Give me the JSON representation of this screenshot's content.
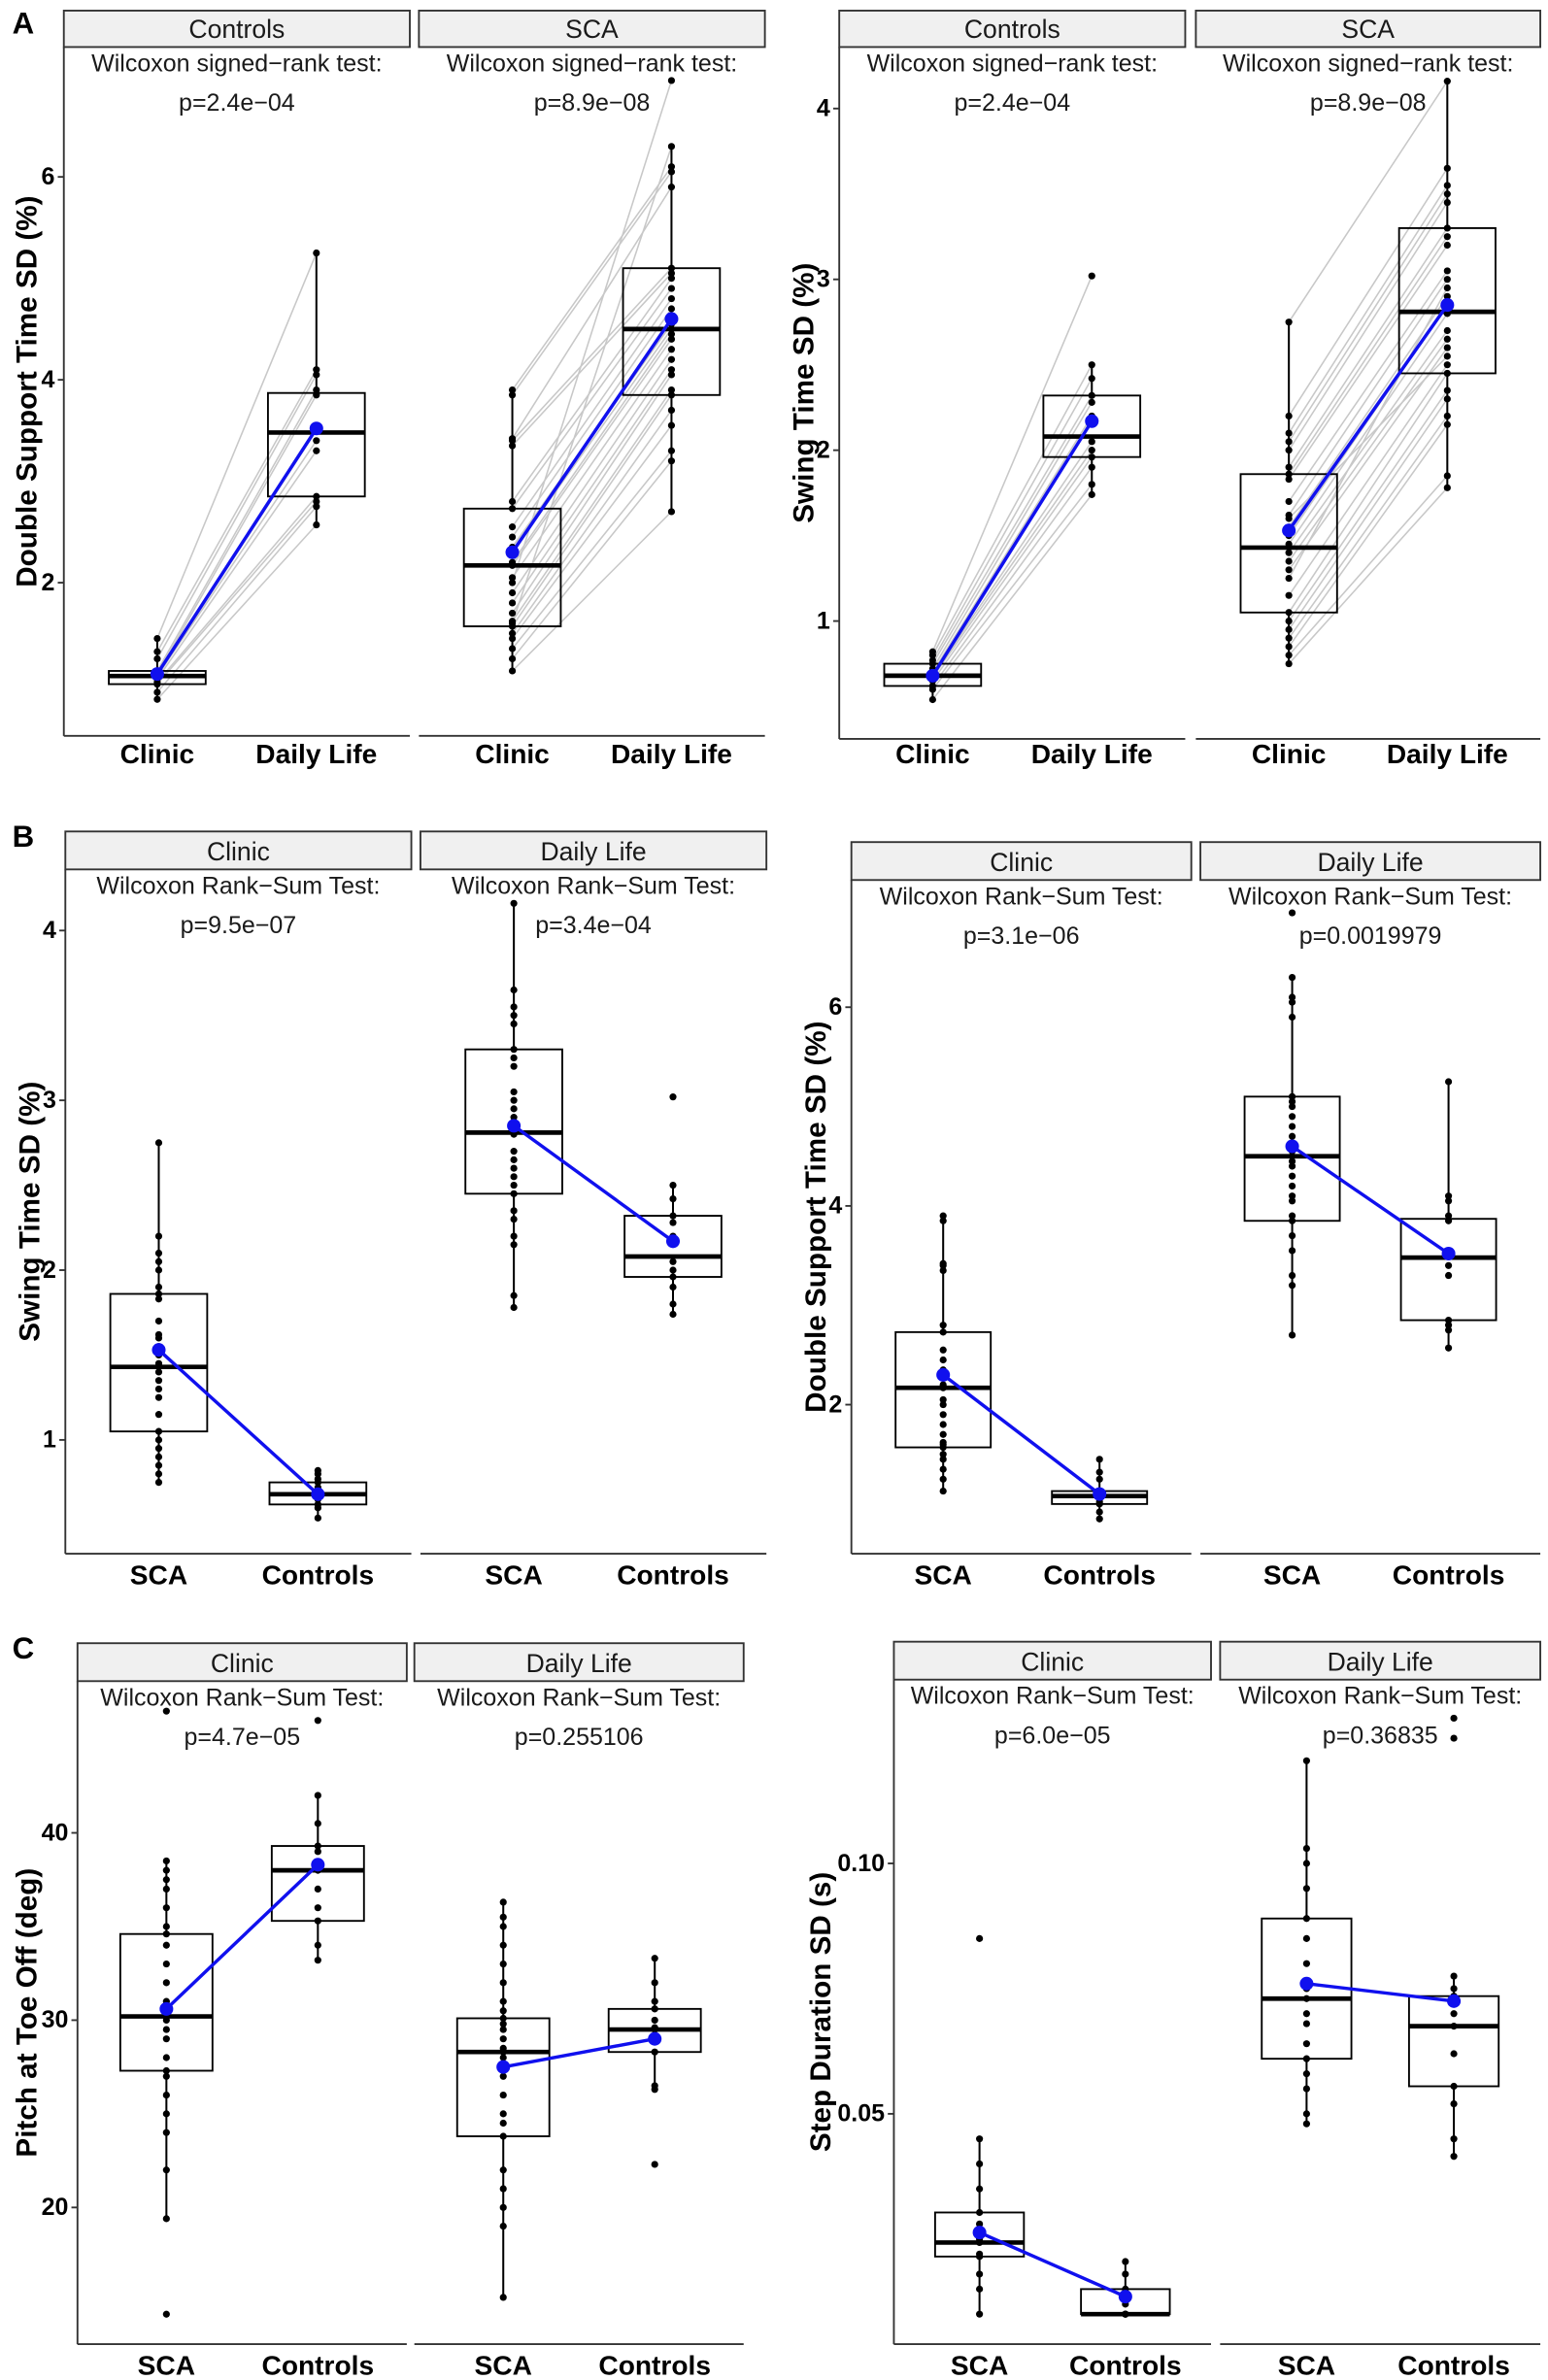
{
  "colors": {
    "mean": "#1010ee",
    "paired_line": "#c8c8c8",
    "strip_bg": "#f0f0f0",
    "points": "#000000"
  },
  "panel_letters": [
    "A",
    "B",
    "C"
  ],
  "chart_data": [
    {
      "type": "boxplot",
      "panel": "A",
      "ylabel": "Double Support Time SD (%)",
      "yticks": [
        2,
        4,
        6
      ],
      "ylim": [
        0.49,
        7.28
      ],
      "paired": true,
      "facets": [
        {
          "strip": "Controls",
          "test": "Wilcoxon signed−rank test:",
          "p": "p=2.4e−04",
          "categories": [
            "Clinic",
            "Daily Life"
          ],
          "groups": [
            {
              "box": [
                0.85,
                1.0,
                1.08,
                1.13,
                1.45
              ],
              "mean": 1.1,
              "points": [
                0.85,
                0.92,
                1.0,
                1.02,
                1.05,
                1.08,
                1.08,
                1.1,
                1.13,
                1.25,
                1.32,
                1.45
              ]
            },
            {
              "box": [
                2.57,
                2.85,
                3.48,
                3.87,
                5.25
              ],
              "mean": 3.52,
              "points": [
                2.57,
                2.75,
                2.8,
                2.85,
                3.3,
                3.4,
                3.5,
                3.85,
                3.9,
                4.05,
                4.1,
                5.25
              ]
            }
          ]
        },
        {
          "strip": "SCA",
          "test": "Wilcoxon signed−rank test:",
          "p": "p=8.9e−08",
          "categories": [
            "Clinic",
            "Daily Life"
          ],
          "groups": [
            {
              "box": [
                1.13,
                1.57,
                2.17,
                2.73,
                3.9
              ],
              "mean": 2.3,
              "points": [
                1.13,
                1.25,
                1.35,
                1.45,
                1.5,
                1.57,
                1.62,
                1.7,
                1.8,
                1.9,
                2.05,
                2.17,
                2.2,
                2.3,
                2.35,
                2.45,
                2.55,
                2.73,
                2.8,
                3.35,
                3.4,
                3.42,
                3.85,
                3.9,
                1.6,
                2.0
              ]
            },
            {
              "box": [
                2.7,
                3.85,
                4.5,
                5.1,
                6.3
              ],
              "mean": 4.6,
              "points": [
                2.7,
                3.2,
                3.3,
                3.55,
                3.7,
                3.85,
                3.9,
                4.05,
                4.1,
                4.2,
                4.3,
                4.4,
                4.45,
                4.5,
                4.55,
                4.7,
                4.8,
                4.9,
                5.0,
                5.05,
                5.1,
                5.9,
                6.05,
                6.1,
                6.3,
                6.95
              ]
            }
          ]
        }
      ]
    },
    {
      "type": "boxplot",
      "panel": "A",
      "ylabel": "Swing Time SD (%)",
      "yticks": [
        1,
        2,
        3,
        4
      ],
      "ylim": [
        0.31,
        4.36
      ],
      "paired": true,
      "facets": [
        {
          "strip": "Controls",
          "test": "Wilcoxon signed−rank test:",
          "p": "p=2.4e−04",
          "categories": [
            "Clinic",
            "Daily Life"
          ],
          "groups": [
            {
              "box": [
                0.54,
                0.62,
                0.68,
                0.75,
                0.82
              ],
              "mean": 0.68,
              "points": [
                0.54,
                0.6,
                0.62,
                0.65,
                0.67,
                0.68,
                0.7,
                0.72,
                0.75,
                0.77,
                0.8,
                0.82
              ]
            },
            {
              "box": [
                1.74,
                1.96,
                2.08,
                2.32,
                2.5
              ],
              "mean": 2.17,
              "points": [
                1.74,
                1.8,
                1.9,
                1.96,
                2.0,
                2.05,
                2.2,
                2.28,
                2.32,
                2.42,
                2.5,
                3.02
              ]
            }
          ]
        },
        {
          "strip": "SCA",
          "test": "Wilcoxon signed−rank test:",
          "p": "p=8.9e−08",
          "categories": [
            "Clinic",
            "Daily Life"
          ],
          "groups": [
            {
              "box": [
                0.75,
                1.05,
                1.43,
                1.86,
                2.75
              ],
              "mean": 1.53,
              "points": [
                0.75,
                0.8,
                0.85,
                0.9,
                0.95,
                1.0,
                1.05,
                1.15,
                1.3,
                1.35,
                1.4,
                1.45,
                1.5,
                1.55,
                1.62,
                1.7,
                1.83,
                1.86,
                1.9,
                2.0,
                2.05,
                2.1,
                2.2,
                2.75,
                1.25,
                1.6
              ]
            },
            {
              "box": [
                1.78,
                2.45,
                2.81,
                3.3,
                4.16
              ],
              "mean": 2.85,
              "points": [
                1.78,
                1.85,
                2.15,
                2.2,
                2.3,
                2.35,
                2.45,
                2.5,
                2.6,
                2.65,
                2.7,
                2.8,
                2.85,
                2.9,
                3.0,
                3.05,
                3.2,
                3.25,
                3.3,
                3.45,
                3.5,
                3.55,
                3.65,
                4.16,
                2.95,
                2.55
              ]
            }
          ]
        }
      ]
    },
    {
      "type": "boxplot",
      "panel": "B",
      "ylabel": "Swing Time SD (%)",
      "yticks": [
        1,
        2,
        3,
        4
      ],
      "ylim": [
        0.33,
        4.36
      ],
      "paired": false,
      "facets": [
        {
          "strip": "Clinic",
          "test": "Wilcoxon Rank−Sum Test:",
          "p": "p=9.5e−07",
          "categories": [
            "SCA",
            "Controls"
          ],
          "groups": [
            {
              "box": [
                0.75,
                1.05,
                1.43,
                1.86,
                2.75
              ],
              "mean": 1.53,
              "points": [
                0.75,
                0.8,
                0.85,
                0.9,
                0.95,
                1.0,
                1.05,
                1.15,
                1.3,
                1.35,
                1.4,
                1.45,
                1.5,
                1.55,
                1.62,
                1.7,
                1.83,
                1.86,
                1.9,
                2.0,
                2.05,
                2.1,
                2.2,
                2.75,
                1.25,
                1.6
              ]
            },
            {
              "box": [
                0.54,
                0.62,
                0.68,
                0.75,
                0.82
              ],
              "mean": 0.68,
              "points": [
                0.54,
                0.6,
                0.62,
                0.65,
                0.67,
                0.68,
                0.7,
                0.72,
                0.75,
                0.77,
                0.8,
                0.82
              ]
            }
          ]
        },
        {
          "strip": "Daily Life",
          "test": "Wilcoxon Rank−Sum Test:",
          "p": "p=3.4e−04",
          "categories": [
            "SCA",
            "Controls"
          ],
          "groups": [
            {
              "box": [
                1.78,
                2.45,
                2.81,
                3.3,
                4.16
              ],
              "mean": 2.85,
              "points": [
                1.78,
                1.85,
                2.15,
                2.2,
                2.3,
                2.35,
                2.45,
                2.5,
                2.6,
                2.65,
                2.7,
                2.8,
                2.85,
                2.9,
                3.0,
                3.05,
                3.2,
                3.25,
                3.3,
                3.45,
                3.5,
                3.55,
                3.65,
                4.16,
                2.95,
                2.55
              ]
            },
            {
              "box": [
                1.74,
                1.96,
                2.08,
                2.32,
                2.5
              ],
              "mean": 2.17,
              "points": [
                1.74,
                1.8,
                1.9,
                1.96,
                2.0,
                2.05,
                2.2,
                2.28,
                2.32,
                2.42,
                2.5,
                3.02
              ]
            }
          ]
        }
      ]
    },
    {
      "type": "boxplot",
      "panel": "B",
      "ylabel": "Double Support Time SD (%)",
      "yticks": [
        2,
        4,
        6
      ],
      "ylim": [
        0.5,
        7.28
      ],
      "paired": false,
      "facets": [
        {
          "strip": "Clinic",
          "test": "Wilcoxon Rank−Sum Test:",
          "p": "p=3.1e−06",
          "categories": [
            "SCA",
            "Controls"
          ],
          "groups": [
            {
              "box": [
                1.13,
                1.57,
                2.17,
                2.73,
                3.9
              ],
              "mean": 2.3,
              "points": [
                1.13,
                1.25,
                1.35,
                1.45,
                1.5,
                1.57,
                1.62,
                1.7,
                1.8,
                1.9,
                2.05,
                2.17,
                2.2,
                2.3,
                2.35,
                2.45,
                2.55,
                2.73,
                2.8,
                3.35,
                3.4,
                3.42,
                3.85,
                3.9,
                1.6,
                2.0
              ]
            },
            {
              "box": [
                0.85,
                1.0,
                1.08,
                1.13,
                1.45
              ],
              "mean": 1.1,
              "points": [
                0.85,
                0.92,
                1.0,
                1.02,
                1.05,
                1.08,
                1.08,
                1.1,
                1.13,
                1.25,
                1.32,
                1.45
              ]
            }
          ]
        },
        {
          "strip": "Daily Life",
          "test": "Wilcoxon Rank−Sum Test:",
          "p": "p=0.0019979",
          "categories": [
            "SCA",
            "Controls"
          ],
          "groups": [
            {
              "box": [
                2.7,
                3.85,
                4.5,
                5.1,
                6.3
              ],
              "mean": 4.6,
              "points": [
                2.7,
                3.2,
                3.3,
                3.55,
                3.7,
                3.85,
                3.9,
                4.05,
                4.1,
                4.2,
                4.3,
                4.4,
                4.45,
                4.5,
                4.55,
                4.7,
                4.8,
                4.9,
                5.0,
                5.05,
                5.1,
                5.9,
                6.05,
                6.1,
                6.3,
                6.95
              ]
            },
            {
              "box": [
                2.57,
                2.85,
                3.48,
                3.87,
                5.25
              ],
              "mean": 3.52,
              "points": [
                2.57,
                2.75,
                2.8,
                2.85,
                3.3,
                3.4,
                3.5,
                3.85,
                3.9,
                4.05,
                4.1,
                5.25
              ]
            }
          ]
        }
      ]
    },
    {
      "type": "boxplot",
      "panel": "C",
      "ylabel": "Pitch at Toe Off (deg)",
      "yticks": [
        20,
        30,
        40
      ],
      "ylim": [
        12.7,
        48.1
      ],
      "paired": false,
      "facets": [
        {
          "strip": "Clinic",
          "test": "Wilcoxon Rank−Sum Test:",
          "p": "p=4.7e−05",
          "categories": [
            "SCA",
            "Controls"
          ],
          "groups": [
            {
              "box": [
                19.4,
                27.3,
                30.2,
                34.6,
                38.5
              ],
              "mean": 30.6,
              "points": [
                14.3,
                19.4,
                22,
                24,
                25,
                26,
                27.3,
                28,
                29,
                29.5,
                30,
                30.2,
                30.5,
                31,
                32,
                33,
                34,
                34.6,
                35,
                36,
                37,
                37.5,
                38,
                38.5,
                46.5,
                27
              ]
            },
            {
              "box": [
                33.2,
                35.3,
                38.0,
                39.3,
                42.0
              ],
              "mean": 38.3,
              "points": [
                33.2,
                34,
                35.3,
                36,
                37,
                38,
                38.2,
                39,
                39.3,
                40.5,
                42,
                46
              ]
            }
          ]
        },
        {
          "strip": "Daily Life",
          "test": "Wilcoxon Rank−Sum Test:",
          "p": "p=0.255106",
          "categories": [
            "SCA",
            "Controls"
          ],
          "groups": [
            {
              "box": [
                15.2,
                23.8,
                28.3,
                30.1,
                36.3
              ],
              "mean": 27.5,
              "points": [
                15.2,
                19,
                20,
                21,
                22,
                23.8,
                24.5,
                26,
                27,
                28,
                28.3,
                28.5,
                29,
                29.5,
                30.1,
                30.5,
                31,
                32,
                33,
                34,
                35,
                35.5,
                36.3,
                25,
                27.5,
                29.8
              ]
            },
            {
              "box": [
                26.3,
                28.3,
                29.5,
                30.6,
                33.3
              ],
              "mean": 29.0,
              "points": [
                22.3,
                26.3,
                26.5,
                28.3,
                29,
                29.5,
                29.6,
                30,
                30.6,
                31,
                32,
                33.3
              ]
            }
          ]
        }
      ]
    },
    {
      "type": "boxplot",
      "panel": "C",
      "ylabel": "Step Duration SD (s)",
      "yticks": [
        0.05,
        0.1
      ],
      "ytick_labels": [
        "0.05",
        "0.10"
      ],
      "ylim": [
        0.004,
        0.1367
      ],
      "paired": false,
      "facets": [
        {
          "strip": "Clinic",
          "test": "Wilcoxon Rank−Sum Test:",
          "p": "p=6.0e−05",
          "categories": [
            "SCA",
            "Controls"
          ],
          "groups": [
            {
              "box": [
                0.01,
                0.0215,
                0.0243,
                0.0303,
                0.045
              ],
              "mean": 0.0263,
              "points": [
                0.01,
                0.015,
                0.018,
                0.0215,
                0.022,
                0.0243,
                0.025,
                0.026,
                0.028,
                0.0303,
                0.035,
                0.04,
                0.045,
                0.085
              ]
            },
            {
              "box": [
                0.01,
                0.01,
                0.01,
                0.015,
                0.0205
              ],
              "mean": 0.0135,
              "points": [
                0.01,
                0.01,
                0.01,
                0.01,
                0.012,
                0.015,
                0.018,
                0.0205
              ]
            }
          ]
        },
        {
          "strip": "Daily Life",
          "test": "Wilcoxon Rank−Sum Test:",
          "p": "p=0.36835",
          "categories": [
            "SCA",
            "Controls"
          ],
          "groups": [
            {
              "box": [
                0.048,
                0.061,
                0.073,
                0.089,
                0.1205
              ],
              "mean": 0.076,
              "points": [
                0.048,
                0.05,
                0.055,
                0.058,
                0.061,
                0.064,
                0.068,
                0.07,
                0.073,
                0.075,
                0.08,
                0.085,
                0.089,
                0.095,
                0.1,
                0.103,
                0.1205
              ]
            },
            {
              "box": [
                0.0415,
                0.0555,
                0.0675,
                0.0735,
                0.0775
              ],
              "mean": 0.0725,
              "points": [
                0.0415,
                0.045,
                0.052,
                0.0555,
                0.062,
                0.0675,
                0.07,
                0.0735,
                0.075,
                0.0775,
                0.125,
                0.129
              ]
            }
          ]
        }
      ]
    }
  ]
}
